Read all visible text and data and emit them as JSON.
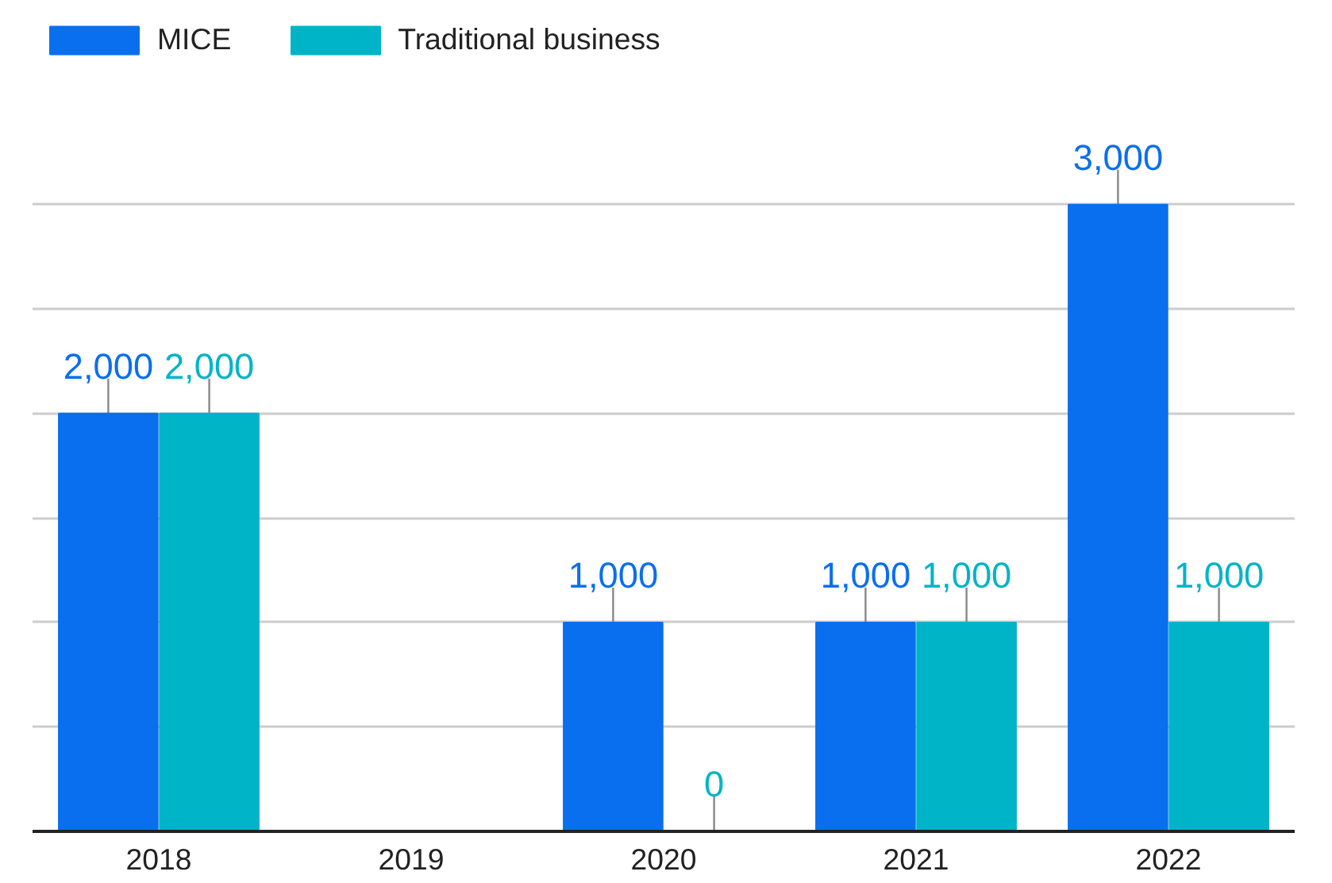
{
  "chart_data": {
    "type": "bar",
    "categories": [
      "2018",
      "2019",
      "2020",
      "2021",
      "2022"
    ],
    "series": [
      {
        "name": "MICE",
        "color": "#0a6fee",
        "values": [
          2000,
          null,
          1000,
          1000,
          3000
        ],
        "value_labels": [
          "2,000",
          null,
          "1,000",
          "1,000",
          "3,000"
        ]
      },
      {
        "name": "Traditional business",
        "color": "#00b4c8",
        "values": [
          2000,
          null,
          0,
          1000,
          1000
        ],
        "value_labels": [
          "2,000",
          null,
          "0",
          "1,000",
          "1,000"
        ]
      }
    ],
    "yticks": [
      {
        "value": 0,
        "label": null
      },
      {
        "value": 500,
        "label": null
      },
      {
        "value": 1000,
        "label": null
      },
      {
        "value": 1500,
        "label": null
      },
      {
        "value": 2000,
        "label": null
      },
      {
        "value": 2500,
        "label": null
      },
      {
        "value": 3000,
        "label": null
      }
    ],
    "tick_labels": "x",
    "grid": "y",
    "legend": "top left"
  }
}
